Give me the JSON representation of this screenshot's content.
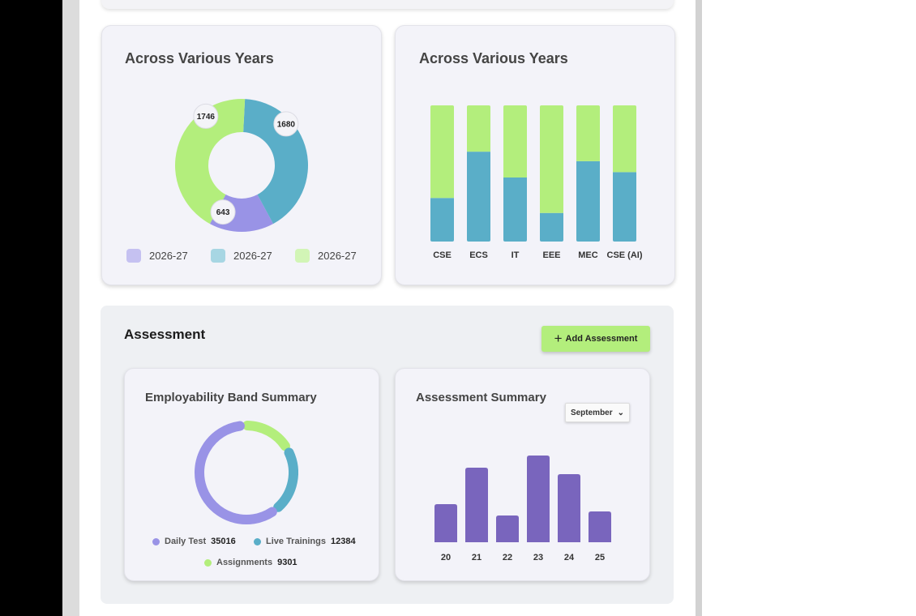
{
  "colors": {
    "purple": "#9993e6",
    "teal": "#5aaec8",
    "green": "#b3ee7c",
    "dark_purple": "#7965bd"
  },
  "year_pie": {
    "title": "Across Various Years",
    "legend": [
      "2026-27",
      "2026-27",
      "2026-27"
    ],
    "chart_data": {
      "type": "pie",
      "values": [
        643,
        1680,
        1746
      ],
      "labels": [
        "643",
        "1680",
        "1746"
      ]
    }
  },
  "dept_bar": {
    "title": "Across Various Years",
    "chart_data": {
      "type": "bar",
      "categories": [
        "CSE",
        "ECS",
        "IT",
        "EEE",
        "MEC",
        "CSE (AI)"
      ],
      "series": [
        {
          "values": [
            32,
            66,
            47,
            21,
            59,
            51
          ]
        },
        {
          "values": [
            68,
            34,
            53,
            79,
            41,
            49
          ]
        }
      ],
      "ylim": [
        0,
        100
      ]
    }
  },
  "assessment": {
    "title": "Assessment",
    "add_button": "Add Assessment",
    "employability": {
      "title": "Employability Band Summary",
      "chart_data": {
        "type": "pie",
        "series": [
          {
            "name": "Daily Test",
            "value": 35016
          },
          {
            "name": "Live Trainings",
            "value": 12384
          },
          {
            "name": "Assignments",
            "value": 9301
          }
        ]
      },
      "legend": [
        {
          "name": "Daily Test",
          "value": "35016"
        },
        {
          "name": "Live Trainings",
          "value": "12384"
        },
        {
          "name": "Assignments",
          "value": "9301"
        }
      ]
    },
    "summary": {
      "title": "Assessment Summary",
      "month": "September",
      "chart_data": {
        "type": "bar",
        "categories": [
          "20",
          "21",
          "22",
          "23",
          "24",
          "25"
        ],
        "values": [
          47,
          92,
          33,
          107,
          84,
          38
        ]
      }
    }
  }
}
